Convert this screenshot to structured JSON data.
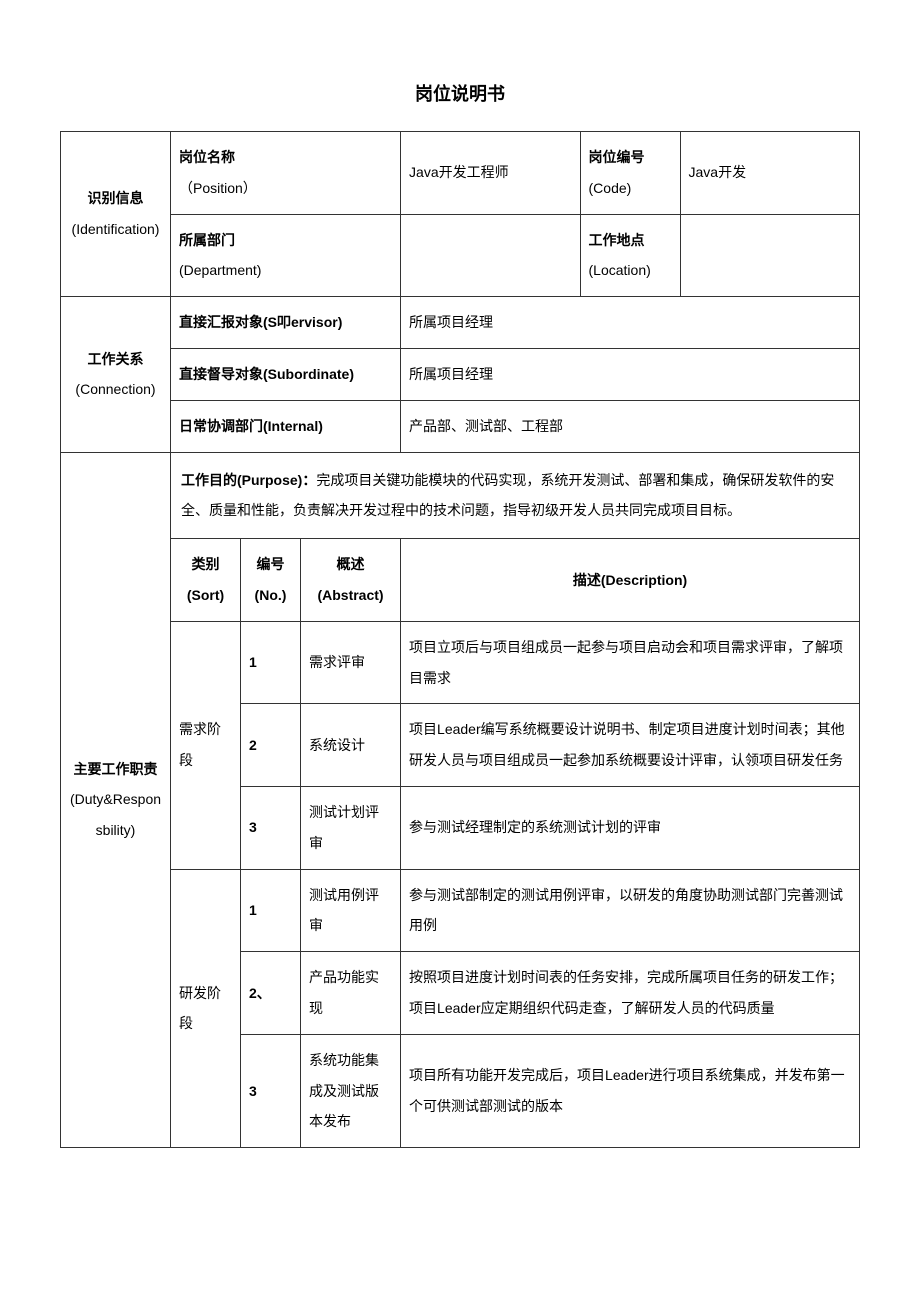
{
  "title": "岗位说明书",
  "identification": {
    "section_label": "识别信息",
    "section_sub": "(Identification)",
    "position_label": "岗位名称",
    "position_sub": "（Position）",
    "position_value": "Java开发工程师",
    "code_label": "岗位编号",
    "code_sub": "(Code)",
    "code_value": "Java开发",
    "department_label": "所属部门",
    "department_sub": "(Department)",
    "department_value": "",
    "location_label": "工作地点",
    "location_sub": "(Location)",
    "location_value": ""
  },
  "connection": {
    "section_label": "工作关系",
    "section_sub": "(Connection)",
    "supervisor_label": "直接汇报对象(S叩ervisor)",
    "supervisor_value": "所属项目经理",
    "subordinate_label": "直接督导对象(Subordinate)",
    "subordinate_value": "所属项目经理",
    "internal_label": "日常协调部门(Internal)",
    "internal_value": "产品部、测试部、工程部"
  },
  "duty": {
    "section_label": "主要工作职责",
    "section_sub": "(Duty&Responsbility)",
    "purpose_label": "工作目的(Purpose)：",
    "purpose_text": "完成项目关键功能模块的代码实现，系统开发测试、部署和集成，确保研发软件的安全、质量和性能，负责解决开发过程中的技术问题，指导初级开发人员共同完成项目目标。",
    "headers": {
      "sort": "类别",
      "sort_sub": "(Sort)",
      "no": "编号",
      "no_sub": "(No.)",
      "abstract": "概述",
      "abstract_sub": "(Abstract)",
      "description": "描述(Description)"
    },
    "phases": [
      {
        "name": "需求阶段",
        "items": [
          {
            "no": "1",
            "abstract": "需求评审",
            "desc": "项目立项后与项目组成员一起参与项目启动会和项目需求评审，了解项目需求"
          },
          {
            "no": "2",
            "abstract": "系统设计",
            "desc": "项目Leader编写系统概要设计说明书、制定项目进度计划时间表；其他研发人员与项目组成员一起参加系统概要设计评审，认领项目研发任务"
          },
          {
            "no": "3",
            "abstract": "测试计划评审",
            "desc": "参与测试经理制定的系统测试计划的评审"
          }
        ]
      },
      {
        "name": "研发阶段",
        "items": [
          {
            "no": "1",
            "abstract": "测试用例评审",
            "desc": "参与测试部制定的测试用例评审，以研发的角度协助测试部门完善测试用例"
          },
          {
            "no": "2、",
            "abstract": "产品功能实现",
            "desc": "按照项目进度计划时间表的任务安排，完成所属项目任务的研发工作；项目Leader应定期组织代码走查，了解研发人员的代码质量"
          },
          {
            "no": "3",
            "abstract": "系统功能集成及测试版本发布",
            "desc": "项目所有功能开发完成后，项目Leader进行项目系统集成，并发布第一个可供测试部测试的版本"
          }
        ]
      }
    ]
  }
}
